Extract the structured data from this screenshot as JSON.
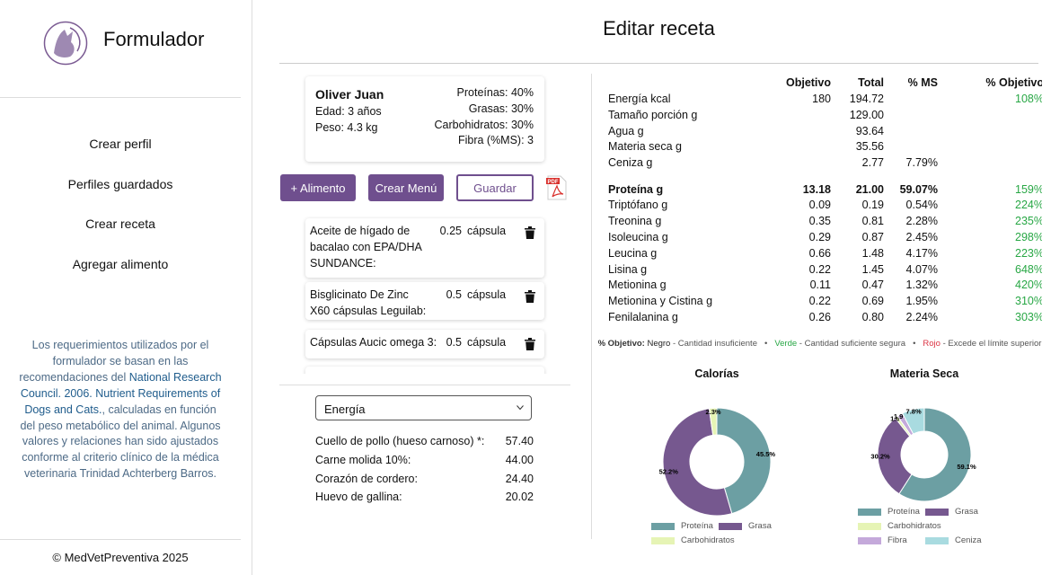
{
  "sidebar": {
    "brand": "Formulador",
    "nav": [
      "Crear perfil",
      "Perfiles guardados",
      "Crear receta",
      "Agregar alimento"
    ],
    "note": {
      "before": "Los requerimientos utilizados por el formulador se basan en las recomendaciones del ",
      "link": "National Research Council. 2006. Nutrient Requirements of Dogs and Cats.",
      "after": ", calculadas en función del peso metabólico del animal. Algunos valores y relaciones han sido ajustados conforme al criterio clínico de la médica veterinaria Trinidad Achterberg Barros."
    },
    "footer": "© MedVetPreventiva 2025"
  },
  "header": {
    "title": "Editar receta"
  },
  "profile": {
    "name": "Oliver Juan",
    "details": [
      "Edad: 3 años",
      "Peso: 4.3 kg"
    ],
    "targets": [
      "Proteínas: 40%",
      "Grasas: 30%",
      "Carbohidratos: 30%",
      "Fibra (%MS): 3"
    ]
  },
  "buttons": [
    "+ Alimento",
    "Crear Menú",
    "Guardar"
  ],
  "ingredients": [
    {
      "name": "Aceite de hígado de bacalao con EPA/DHA SUNDANCE:",
      "qty": "0.25",
      "unit": "cápsula"
    },
    {
      "name": "Bisglicinato De Zinc X60 cápsulas Leguilab:",
      "qty": "0.5",
      "unit": "cápsula"
    },
    {
      "name": "Cápsulas Aucic omega 3:",
      "qty": "0.5",
      "unit": "cápsula"
    }
  ],
  "ranking": {
    "selected": "Energía",
    "rows": [
      [
        "Cuello de pollo (hueso carnoso) *:",
        "57.40"
      ],
      [
        "Carne molida 10%:",
        "44.00"
      ],
      [
        "Corazón de cordero:",
        "24.40"
      ],
      [
        "Huevo de gallina:",
        "20.02"
      ]
    ]
  },
  "table": {
    "headers": [
      "Objetivo",
      "Total",
      "% MS",
      "% Objetivo"
    ],
    "rows": [
      [
        "Energía kcal",
        "180",
        "194.72",
        null,
        "108%"
      ],
      [
        "Tamaño porción g",
        null,
        "129.00",
        null,
        null
      ],
      [
        "Agua g",
        null,
        "93.64",
        null,
        null
      ],
      [
        "Materia seca g",
        null,
        "35.56",
        null,
        null
      ],
      [
        "Ceniza g",
        null,
        "2.77",
        "7.79%",
        null
      ],
      [
        "Proteína g",
        "13.18",
        "21.00",
        "59.07%",
        "159%"
      ],
      [
        "Triptófano g",
        "0.09",
        "0.19",
        "0.54%",
        "224%"
      ],
      [
        "Treonina g",
        "0.35",
        "0.81",
        "2.28%",
        "235%"
      ],
      [
        "Isoleucina g",
        "0.29",
        "0.87",
        "2.45%",
        "298%"
      ],
      [
        "Leucina g",
        "0.66",
        "1.48",
        "4.17%",
        "223%"
      ],
      [
        "Lisina g",
        "0.22",
        "1.45",
        "4.07%",
        "648%"
      ],
      [
        "Metionina g",
        "0.11",
        "0.47",
        "1.32%",
        "420%"
      ],
      [
        "Metionina y Cistina g",
        "0.22",
        "0.69",
        "1.95%",
        "310%"
      ],
      [
        "Fenilalanina g",
        "0.26",
        "0.80",
        "2.24%",
        "303%"
      ]
    ]
  },
  "legend": {
    "label": "% Objetivo:",
    "items": [
      {
        "term": "Negro",
        "text": "- Cantidad insuficiente",
        "color": "#222222"
      },
      {
        "term": "Verde",
        "text": "- Cantidad suficiente segura",
        "color": "#28a745"
      },
      {
        "term": "Rojo",
        "text": "- Excede el límite superior",
        "color": "#dc3545"
      }
    ]
  },
  "chart_data": [
    {
      "type": "pie",
      "title": "Calorías",
      "categories": [
        "Proteína",
        "Grasa",
        "Carbohidratos"
      ],
      "values": [
        45.5,
        52.2,
        2.3
      ],
      "value_labels": [
        "45.5%",
        "52.2%",
        "2.3%"
      ],
      "colors": [
        "#6c9fa3",
        "#76588f",
        "#e6f4b5"
      ]
    },
    {
      "type": "pie",
      "title": "Materia Seca",
      "categories": [
        "Proteína",
        "Grasa",
        "Carbohidratos",
        "Fibra",
        "Ceniza"
      ],
      "values": [
        59.1,
        30.2,
        1.0,
        1.9,
        7.8
      ],
      "value_labels": [
        "59.1%",
        "30.2%",
        "1.0%",
        "1.9%",
        "7.8%"
      ],
      "colors": [
        "#6c9fa3",
        "#76588f",
        "#e6f4b5",
        "#c4a9da",
        "#a9dbe0"
      ]
    }
  ]
}
